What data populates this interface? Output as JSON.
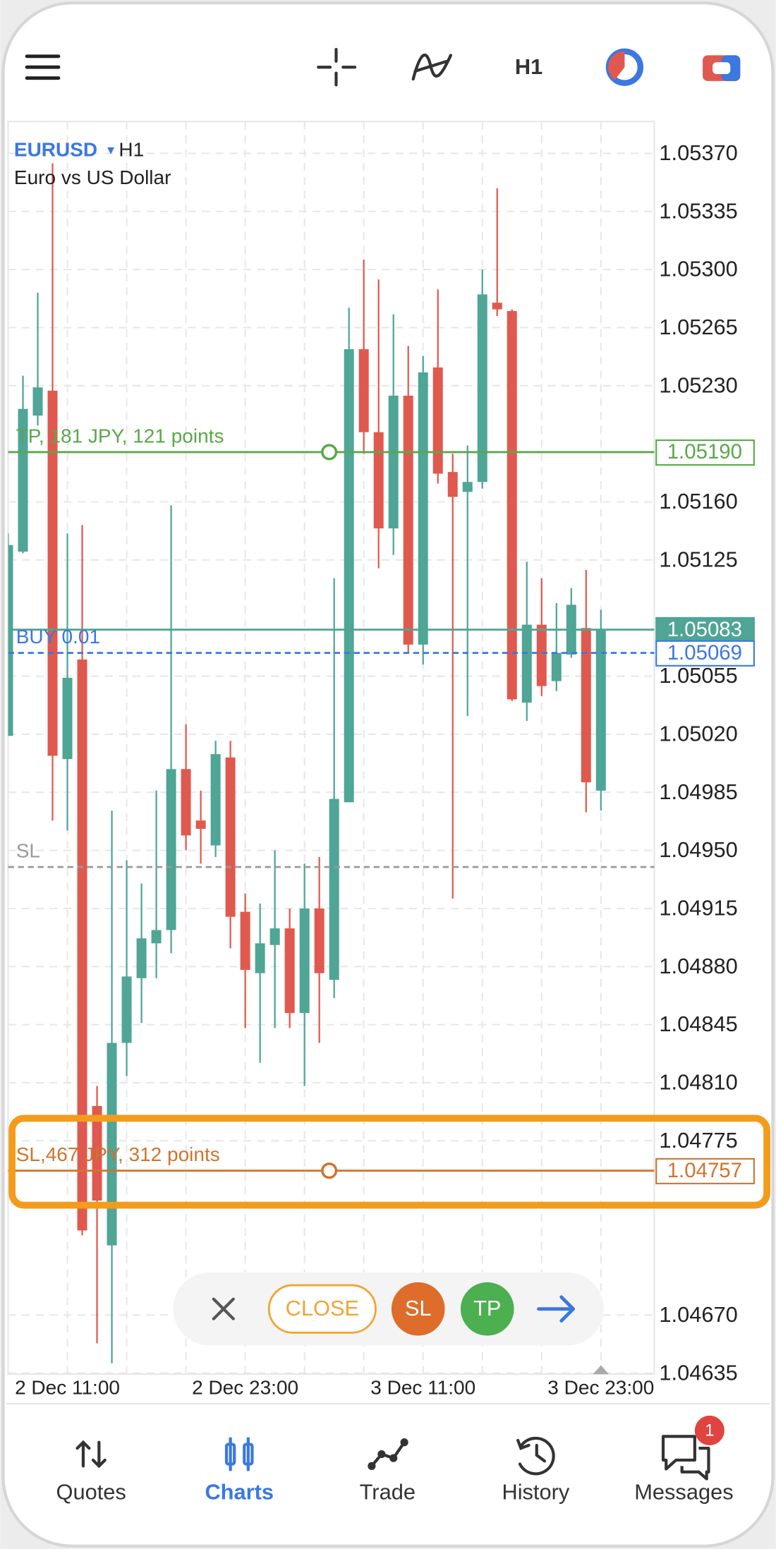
{
  "toolbar": {
    "timeframe": "H1"
  },
  "chart_data": {
    "type": "candlestick",
    "symbol": "EURUSD",
    "timeframe": "H1",
    "description": "Euro vs US Dollar",
    "categories": [
      null,
      null,
      null,
      null,
      "2 Dec 11:00",
      null,
      null,
      null,
      null,
      null,
      null,
      null,
      null,
      null,
      null,
      null,
      "2 Dec 23:00",
      null,
      null,
      null,
      null,
      null,
      null,
      null,
      null,
      null,
      null,
      null,
      "3 Dec 11:00",
      null,
      null,
      null,
      null,
      null,
      null,
      null,
      null,
      null,
      null,
      null,
      "3 Dec 23:00"
    ],
    "open": [
      1.05019,
      1.0513,
      1.05212,
      1.05227,
      1.05005,
      1.05065,
      1.04796,
      1.04712,
      1.04834,
      1.04873,
      1.04894,
      1.04902,
      1.04999,
      1.04968,
      1.04953,
      1.05006,
      1.04913,
      1.04876,
      1.04893,
      1.04903,
      1.04852,
      1.04915,
      1.04872,
      1.04979,
      1.05252,
      1.05202,
      1.05144,
      1.05224,
      1.05074,
      1.05241,
      1.05178,
      1.05166,
      1.05172,
      1.0528,
      1.05275,
      1.05039,
      1.05086,
      1.05052,
      1.05068,
      1.05084,
      1.04986
    ],
    "high": [
      1.05141,
      1.05236,
      1.05286,
      1.05364,
      1.05141,
      1.05146,
      1.04808,
      1.04974,
      1.04944,
      1.0493,
      1.04986,
      1.05158,
      1.05026,
      1.04986,
      1.05016,
      1.05016,
      1.04924,
      1.04918,
      1.0495,
      1.04915,
      1.04942,
      1.04946,
      1.05114,
      1.05277,
      1.05306,
      1.05294,
      1.05273,
      1.05254,
      1.05248,
      1.05288,
      1.05189,
      1.05194,
      1.053,
      1.05349,
      1.05276,
      1.05124,
      1.05114,
      1.05099,
      1.05108,
      1.05119,
      1.05095
    ],
    "low": [
      1.05019,
      1.05129,
      1.05206,
      1.04968,
      1.04962,
      1.04718,
      1.04653,
      1.04641,
      1.04814,
      1.04846,
      1.04873,
      1.04888,
      1.0495,
      1.04942,
      1.04946,
      1.04891,
      1.04843,
      1.04822,
      1.04843,
      1.04843,
      1.04808,
      1.04834,
      1.04861,
      1.04979,
      1.05189,
      1.0512,
      1.05128,
      1.05069,
      1.05062,
      1.05171,
      1.04921,
      1.05031,
      1.05168,
      1.05272,
      1.0504,
      1.05028,
      1.05043,
      1.05046,
      1.05066,
      1.04973,
      1.04974
    ],
    "close": [
      1.05134,
      1.05216,
      1.05229,
      1.05007,
      1.05054,
      1.04721,
      1.04739,
      1.04834,
      1.04874,
      1.04897,
      1.04902,
      1.04999,
      1.04959,
      1.04963,
      1.05008,
      1.0491,
      1.04878,
      1.04894,
      1.04903,
      1.04852,
      1.04915,
      1.04876,
      1.04981,
      1.05252,
      1.05202,
      1.05144,
      1.05224,
      1.05074,
      1.05238,
      1.05177,
      1.05163,
      1.05172,
      1.05285,
      1.05276,
      1.05041,
      1.05086,
      1.05049,
      1.05069,
      1.05098,
      1.04991,
      1.05083
    ],
    "up_color": "#4fa596",
    "down_color": "#e0594f",
    "ylim": [
      1.04635,
      1.05388
    ],
    "yticks": [
      {
        "value": 1.0537,
        "label": "1.05370"
      },
      1.05335,
      {
        "value": 1.053,
        "label": "1.05300"
      },
      1.05265,
      {
        "value": 1.0523,
        "label": "1.05230"
      },
      {
        "value": 1.0516,
        "label": "1.05160"
      },
      1.05125,
      1.05055,
      {
        "value": 1.0502,
        "label": "1.05020"
      },
      1.04985,
      {
        "value": 1.0495,
        "label": "1.04950"
      },
      1.04915,
      {
        "value": 1.0488,
        "label": "1.04880"
      },
      1.04845,
      {
        "value": 1.0481,
        "label": "1.04810"
      },
      1.04775,
      {
        "value": 1.0467,
        "label": "1.04670"
      },
      1.04635
    ],
    "grid": true,
    "levels": [
      {
        "name": "TP, 181 JPY, 121 points",
        "value": 1.0519,
        "price_label": "1.05190",
        "color": "#5aa84a",
        "style": "solid",
        "box": "outline"
      },
      {
        "value": 1.05083,
        "color": "#4fa596",
        "style": "solid",
        "box": "filled"
      },
      {
        "name": "BUY 0.01",
        "value": 1.05069,
        "color": "#3b78e0",
        "style": "dashed",
        "box": "outline"
      },
      {
        "name": "SL",
        "value": 1.0494,
        "color": "#9a9a9a",
        "style": "dashed"
      },
      {
        "name": "SL,467 JPY, 312 points",
        "value": 1.04757,
        "color": "#d0742c",
        "style": "solid",
        "box": "outline"
      }
    ]
  },
  "order_bar": {
    "close": "CLOSE",
    "sl": "SL",
    "tp": "TP"
  },
  "nav": {
    "items": [
      "Quotes",
      "Charts",
      "Trade",
      "History",
      "Messages"
    ],
    "active": 1,
    "messages_badge": 1
  }
}
